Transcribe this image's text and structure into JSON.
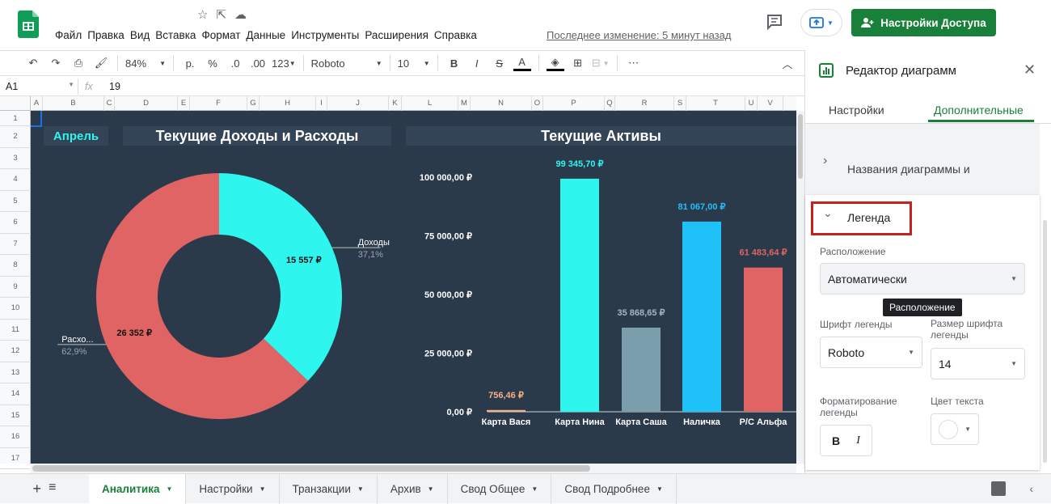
{
  "menu": [
    "Файл",
    "Правка",
    "Вид",
    "Вставка",
    "Формат",
    "Данные",
    "Инструменты",
    "Расширения",
    "Справка"
  ],
  "last_edit": "Последнее изменение: 5 минут назад",
  "share_label": "Настройки Доступа",
  "toolbar": {
    "zoom": "84%",
    "currency": "р.",
    "percent": "%",
    "dec_less": ".0",
    "dec_more": ".00",
    "format123": "123",
    "font": "Roboto",
    "size": "10",
    "bold": "B",
    "italic": "I",
    "strike": "S",
    "textcolor": "A",
    "more": "⋯"
  },
  "formula": {
    "cell": "A1",
    "fx": "fx",
    "value": "19"
  },
  "columns": [
    "A",
    "B",
    "C",
    "D",
    "E",
    "F",
    "G",
    "H",
    "I",
    "J",
    "K",
    "L",
    "M",
    "N",
    "O",
    "P",
    "Q",
    "R",
    "S",
    "T",
    "U",
    "V"
  ],
  "rows": [
    "1",
    "2",
    "3",
    "4",
    "5",
    "6",
    "7",
    "8",
    "9",
    "10",
    "11",
    "12",
    "13",
    "14",
    "15",
    "16",
    "17"
  ],
  "dashboard": {
    "month": "Апрель",
    "title_left": "Текущие Доходы и Расходы",
    "title_right": "Текущие Активы"
  },
  "chart_data": [
    {
      "type": "pie",
      "donut": true,
      "slices": [
        {
          "name": "Доходы",
          "value_label": "15 557 ₽",
          "value": 15557,
          "percent_label": "37,1%",
          "color": "#2ef6ee"
        },
        {
          "name": "Расхо...",
          "value_label": "26 352 ₽",
          "value": 26352,
          "percent_label": "62,9%",
          "color": "#e06464"
        }
      ]
    },
    {
      "type": "bar",
      "categories": [
        "Карта Вася",
        "Карта Нина",
        "Карта Саша",
        "Наличка",
        "Р/С Альфа"
      ],
      "values": [
        756.46,
        99345.7,
        35868.65,
        81067.0,
        61483.64
      ],
      "value_labels": [
        "756,46 ₽",
        "99 345,70 ₽",
        "35 868,65 ₽",
        "81 067,00 ₽",
        "61 483,64 ₽"
      ],
      "colors": [
        "#f4b183",
        "#2ef6ee",
        "#7a9eab",
        "#1fc1f9",
        "#e06464"
      ],
      "yticks": [
        "0,00 ₽",
        "25 000,00 ₽",
        "50 000,00 ₽",
        "75 000,00 ₽",
        "100 000,00 ₽"
      ],
      "ylim": [
        0,
        100000
      ]
    }
  ],
  "panel": {
    "title": "Редактор диаграмм",
    "tab_settings": "Настройки",
    "tab_extra": "Дополнительные",
    "section_titles": "Названия диаграммы и",
    "section_legend": "Легенда",
    "position_label": "Расположение",
    "position_value": "Автоматически",
    "tooltip": "Расположение",
    "font_label": "Шрифт легенды",
    "font_value": "Roboto",
    "size_label": "Размер шрифта легенды",
    "size_value": "14",
    "format_label": "Форматирование легенды",
    "color_label": "Цвет текста",
    "bold": "B",
    "italic": "I"
  },
  "tabs": [
    "Аналитика",
    "Настройки",
    "Транзакции",
    "Архив",
    "Свод Общее",
    "Свод Подробнее"
  ],
  "colors": {
    "accent": "#188038",
    "dashboard_bg": "#2b3a4b",
    "highlight_box": "#c5221f"
  }
}
